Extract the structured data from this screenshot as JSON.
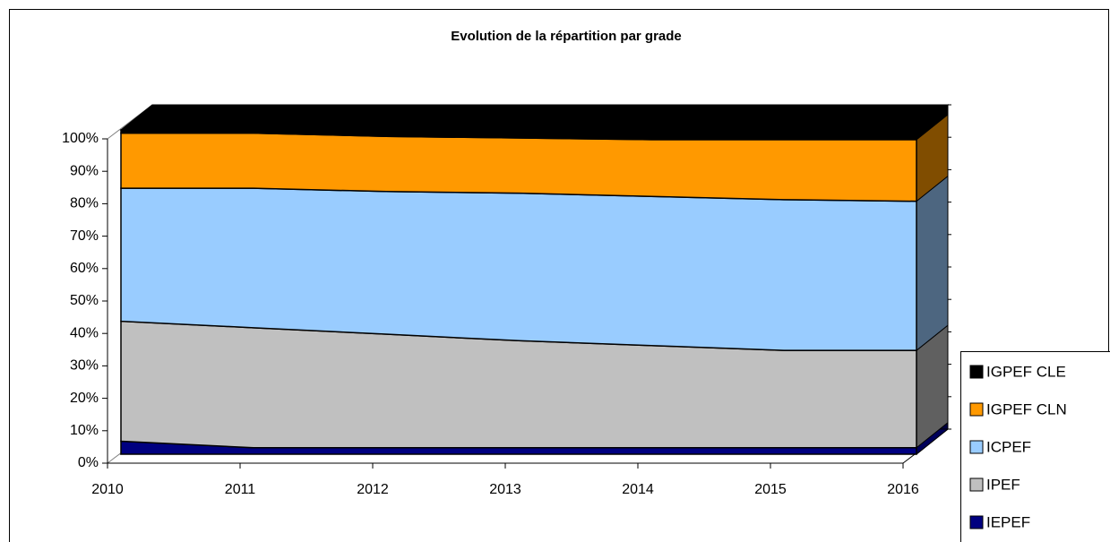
{
  "chart_data": {
    "type": "area3d",
    "title": "Evolution de la répartition par grade",
    "categories": [
      "2010",
      "2011",
      "2012",
      "2013",
      "2014",
      "2015",
      "2016"
    ],
    "series": [
      {
        "name": "IEPEF",
        "color": "#000080",
        "values": [
          4,
          2,
          2,
          2,
          2,
          2,
          2
        ]
      },
      {
        "name": "IPEF",
        "color": "#c0c0c0",
        "values": [
          37,
          37,
          35,
          33,
          31.5,
          30,
          30
        ]
      },
      {
        "name": "ICPEF",
        "color": "#99ccff",
        "values": [
          41,
          43,
          44,
          45.5,
          46,
          46.5,
          46
        ]
      },
      {
        "name": "IGPEF CLN",
        "color": "#ff9900",
        "values": [
          17,
          17,
          17,
          17,
          17.5,
          18.5,
          19
        ]
      },
      {
        "name": "IGPEF CLE",
        "color": "#000000",
        "values": [
          1,
          1,
          2,
          2.5,
          3,
          3,
          3
        ]
      }
    ],
    "ylim": [
      0,
      100
    ],
    "yticks": [
      {
        "value": 0,
        "label": "0%"
      },
      {
        "value": 10,
        "label": "10%"
      },
      {
        "value": 20,
        "label": "20%"
      },
      {
        "value": 30,
        "label": "30%"
      },
      {
        "value": 40,
        "label": "40%"
      },
      {
        "value": 50,
        "label": "50%"
      },
      {
        "value": 60,
        "label": "60%"
      },
      {
        "value": 70,
        "label": "70%"
      },
      {
        "value": 80,
        "label": "80%"
      },
      {
        "value": 90,
        "label": "90%"
      },
      {
        "value": 100,
        "label": "100%"
      }
    ],
    "legend": "right"
  }
}
